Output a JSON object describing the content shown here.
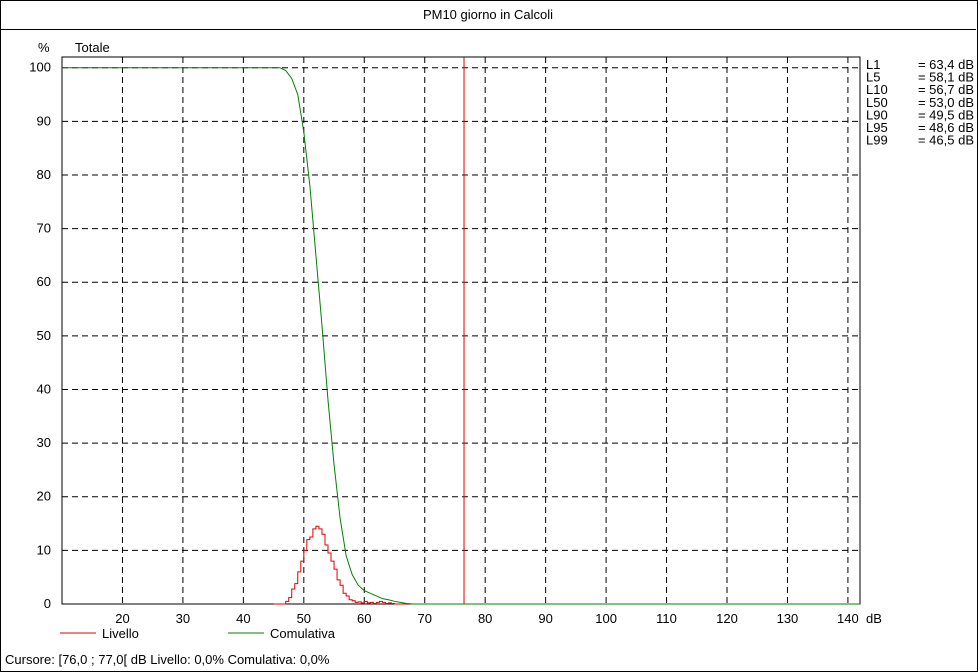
{
  "chart_data": {
    "type": "line",
    "title": "PM10 giorno in Calcoli",
    "subtitle": "Totale",
    "ylabel": "%",
    "xlabel": "dB",
    "xlim": [
      10,
      142
    ],
    "ylim": [
      0,
      102
    ],
    "x_ticks": [
      20,
      30,
      40,
      50,
      60,
      70,
      80,
      90,
      100,
      110,
      120,
      130,
      140
    ],
    "y_ticks": [
      0,
      10,
      20,
      30,
      40,
      50,
      60,
      70,
      80,
      90,
      100
    ],
    "grid": true,
    "cursor_x": 76.5,
    "series": [
      {
        "name": "Livello",
        "color": "#e00000",
        "style": "step",
        "x": [
          45,
          45.5,
          46,
          46.5,
          47,
          47.5,
          48,
          48.5,
          49,
          49.5,
          50,
          50.5,
          51,
          51.5,
          52,
          52.5,
          53,
          53.5,
          54,
          54.5,
          55,
          55.5,
          56,
          56.5,
          57,
          57.5,
          58,
          58.5,
          59,
          59.5,
          60,
          60.5,
          61,
          61.5,
          62,
          62.5,
          63,
          63.5,
          64,
          64.5,
          65,
          65.5,
          66,
          66.5,
          67
        ],
        "values": [
          0,
          0,
          0,
          0,
          0.5,
          1.2,
          2.8,
          3.8,
          6.0,
          8.0,
          10.0,
          12.0,
          12.5,
          14.0,
          14.5,
          14.0,
          13.0,
          11.0,
          9.5,
          8.0,
          6.5,
          4.5,
          3.5,
          2.0,
          1.5,
          0.8,
          0.6,
          0.3,
          0.4,
          0.2,
          0.5,
          0.2,
          0.3,
          0.1,
          0.3,
          0.5,
          0.3,
          0.1,
          0.2,
          0.1,
          0,
          0,
          0,
          0,
          0
        ]
      },
      {
        "name": "Comulativa",
        "color": "#008000",
        "style": "line",
        "x": [
          10,
          44,
          46,
          47,
          48,
          49,
          50,
          51,
          52,
          53,
          54,
          55,
          56,
          57,
          58,
          59,
          60,
          61,
          62,
          63,
          64,
          65,
          66,
          67,
          68,
          70,
          142
        ],
        "values": [
          100,
          100,
          100,
          99.5,
          98,
          95,
          88,
          78,
          65,
          52,
          38,
          26,
          16,
          9,
          5.5,
          3.5,
          2.5,
          2.0,
          1.5,
          1.0,
          0.8,
          0.5,
          0.3,
          0.1,
          0,
          0,
          0
        ]
      }
    ],
    "stats": [
      {
        "label": "L1",
        "value": "= 63,4 dB"
      },
      {
        "label": "L5",
        "value": "= 58,1 dB"
      },
      {
        "label": "L10",
        "value": "= 56,7 dB"
      },
      {
        "label": "L50",
        "value": "= 53,0 dB"
      },
      {
        "label": "L90",
        "value": "= 49,5 dB"
      },
      {
        "label": "L95",
        "value": "= 48,6 dB"
      },
      {
        "label": "L99",
        "value": "= 46,5 dB"
      }
    ]
  },
  "status": "Cursore: [76,0 ; 77,0[ dB   Livello: 0,0%   Comulativa: 0,0%"
}
